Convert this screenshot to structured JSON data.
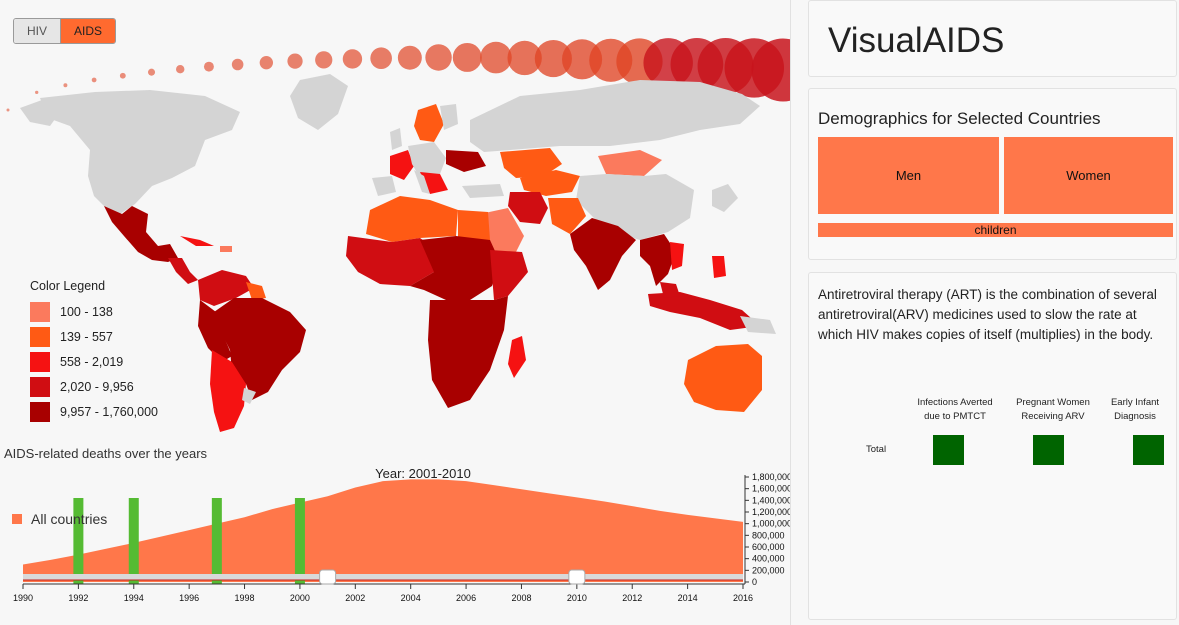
{
  "toggle": {
    "hiv_label": "HIV",
    "aids_label": "AIDS",
    "selected": "AIDS"
  },
  "map": {
    "legend": {
      "title": "Color Legend",
      "items": [
        {
          "label": "100 - 138",
          "color": "#fb7a5d"
        },
        {
          "label": "139 - 557",
          "color": "#ff5a14"
        },
        {
          "label": "558 - 2,019",
          "color": "#f51212"
        },
        {
          "label": "2,020 - 9,956",
          "color": "#d00d12"
        },
        {
          "label": "9,957 - 1,760,000",
          "color": "#a80000"
        }
      ]
    },
    "no_data_color": "#d4d4d4"
  },
  "chart": {
    "title": "AIDS-related deaths over the years",
    "year_range_label": "Year: 2001-2010",
    "legend_label": "All countries",
    "area_color": "#ff774a",
    "marker_color": "#55bb33"
  },
  "chart_data": {
    "type": "area",
    "x": [
      1990,
      1991,
      1992,
      1993,
      1994,
      1995,
      1996,
      1997,
      1998,
      1999,
      2000,
      2001,
      2002,
      2003,
      2004,
      2005,
      2006,
      2007,
      2008,
      2009,
      2010,
      2011,
      2012,
      2013,
      2014,
      2015,
      2016
    ],
    "series": [
      {
        "name": "All countries",
        "values": [
          300000,
          380000,
          470000,
          570000,
          670000,
          780000,
          890000,
          1000000,
          1110000,
          1250000,
          1360000,
          1470000,
          1620000,
          1730000,
          1760000,
          1760000,
          1730000,
          1660000,
          1590000,
          1520000,
          1450000,
          1380000,
          1300000,
          1220000,
          1150000,
          1090000,
          1030000
        ]
      }
    ],
    "xlabel": "",
    "ylabel": "",
    "xlim": [
      1990,
      2016
    ],
    "ylim": [
      0,
      1800000
    ],
    "x_ticks": [
      "1990",
      "1992",
      "1994",
      "1996",
      "1998",
      "2000",
      "2002",
      "2004",
      "2006",
      "2008",
      "2010",
      "2012",
      "2014",
      "2016"
    ],
    "y_ticks": [
      "0",
      "200,000",
      "400,000",
      "600,000",
      "800,000",
      "1,000,000",
      "1,200,000",
      "1,400,000",
      "1,600,000",
      "1,800,000"
    ],
    "highlight_years": [
      1992,
      1994,
      1997,
      2000
    ],
    "selected_range": [
      2001,
      2010
    ]
  },
  "side": {
    "app_title": "VisualAIDS",
    "demographics": {
      "title": "Demographics for Selected Countries",
      "men": "Men",
      "women": "Women",
      "children": "children"
    },
    "art": {
      "description": "Antiretroviral therapy (ART) is the combination of several antiretroviral(ARV) medicines used to slow the rate at which HIV makes copies of itself (multiplies) in the body.",
      "columns": [
        {
          "line1": "Infections Averted",
          "line2": "due to PMTCT"
        },
        {
          "line1": "Pregnant Women",
          "line2": "Receiving ARV"
        },
        {
          "line1": "Early Infant",
          "line2": "Diagnosis"
        }
      ],
      "row_label": "Total",
      "cell_color": "#006400"
    }
  }
}
